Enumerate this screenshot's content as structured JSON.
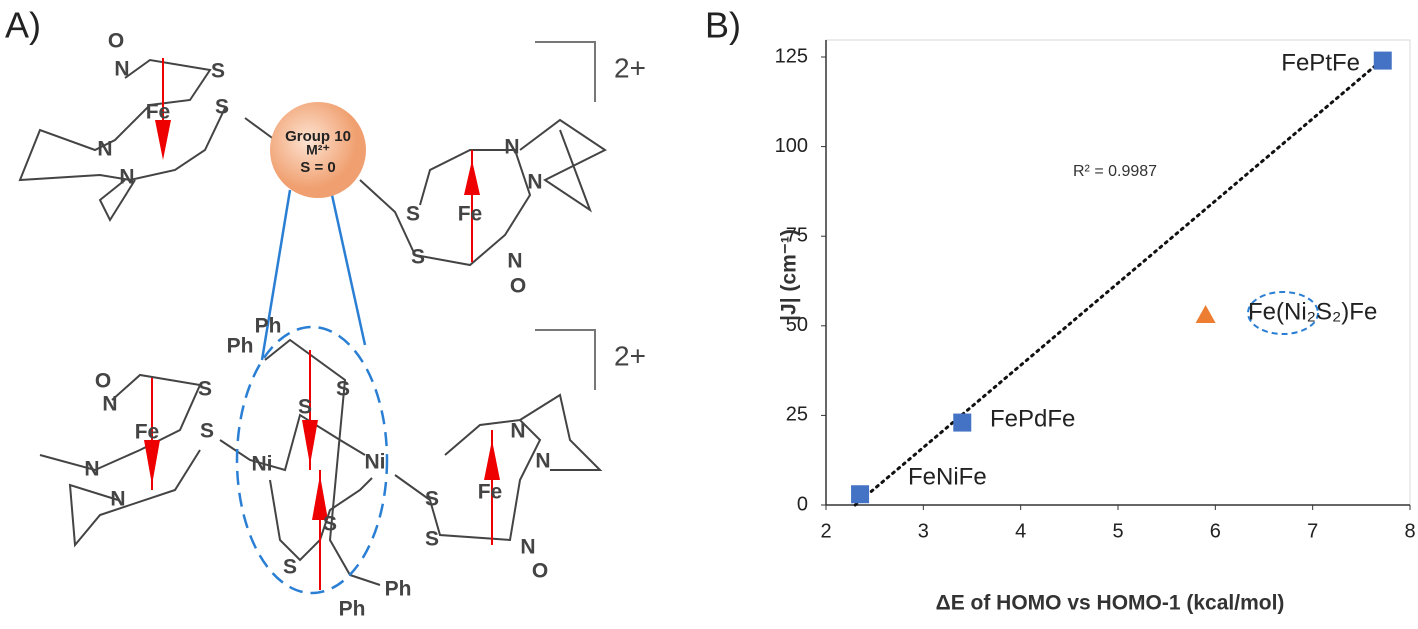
{
  "diagram": {
    "panel_label": "A)",
    "center": [
      "Group 10",
      "M²⁺",
      "S = 0"
    ],
    "charges": [
      "2+",
      "2+"
    ],
    "atoms": [
      "O",
      "N",
      "Fe",
      "S",
      "S",
      "N",
      "N",
      "N",
      "N",
      "S",
      "Fe",
      "S",
      "N",
      "O",
      "O",
      "N",
      "Fe",
      "S",
      "S",
      "N",
      "N",
      "Ph",
      "Ph",
      "S",
      "S",
      "Ni",
      "Ni",
      "S",
      "S",
      "Ph",
      "Ph",
      "N",
      "N",
      "S",
      "Fe",
      "S",
      "N",
      "O"
    ]
  },
  "chart_data": {
    "type": "scatter",
    "panel_label": "B)",
    "xlabel": "ΔE of HOMO vs HOMO-1 (kcal/mol)",
    "ylabel": "|J| (cm⁻¹)",
    "xlim": [
      2,
      8
    ],
    "xticks": [
      2,
      3,
      4,
      5,
      6,
      7,
      8
    ],
    "ylim": [
      0,
      125
    ],
    "yticks": [
      0,
      25,
      50,
      75,
      100,
      125
    ],
    "series": [
      {
        "name": "FeNiFe",
        "color": "#4472c4",
        "marker": "square",
        "x": [
          2.35
        ],
        "values": [
          3
        ]
      },
      {
        "name": "FePdFe",
        "color": "#4472c4",
        "marker": "square",
        "x": [
          3.4
        ],
        "values": [
          23
        ]
      },
      {
        "name": "FePtFe",
        "color": "#4472c4",
        "marker": "square",
        "x": [
          7.72
        ],
        "values": [
          124
        ]
      },
      {
        "name": "Fe(Ni₂S₂)Fe",
        "color": "#ed7d31",
        "marker": "triangle",
        "x": [
          5.9
        ],
        "values": [
          53
        ]
      }
    ],
    "trendline": {
      "x": [
        2.3,
        7.75
      ],
      "values": [
        0,
        125
      ],
      "annotation": "R² = 0.9987"
    }
  }
}
